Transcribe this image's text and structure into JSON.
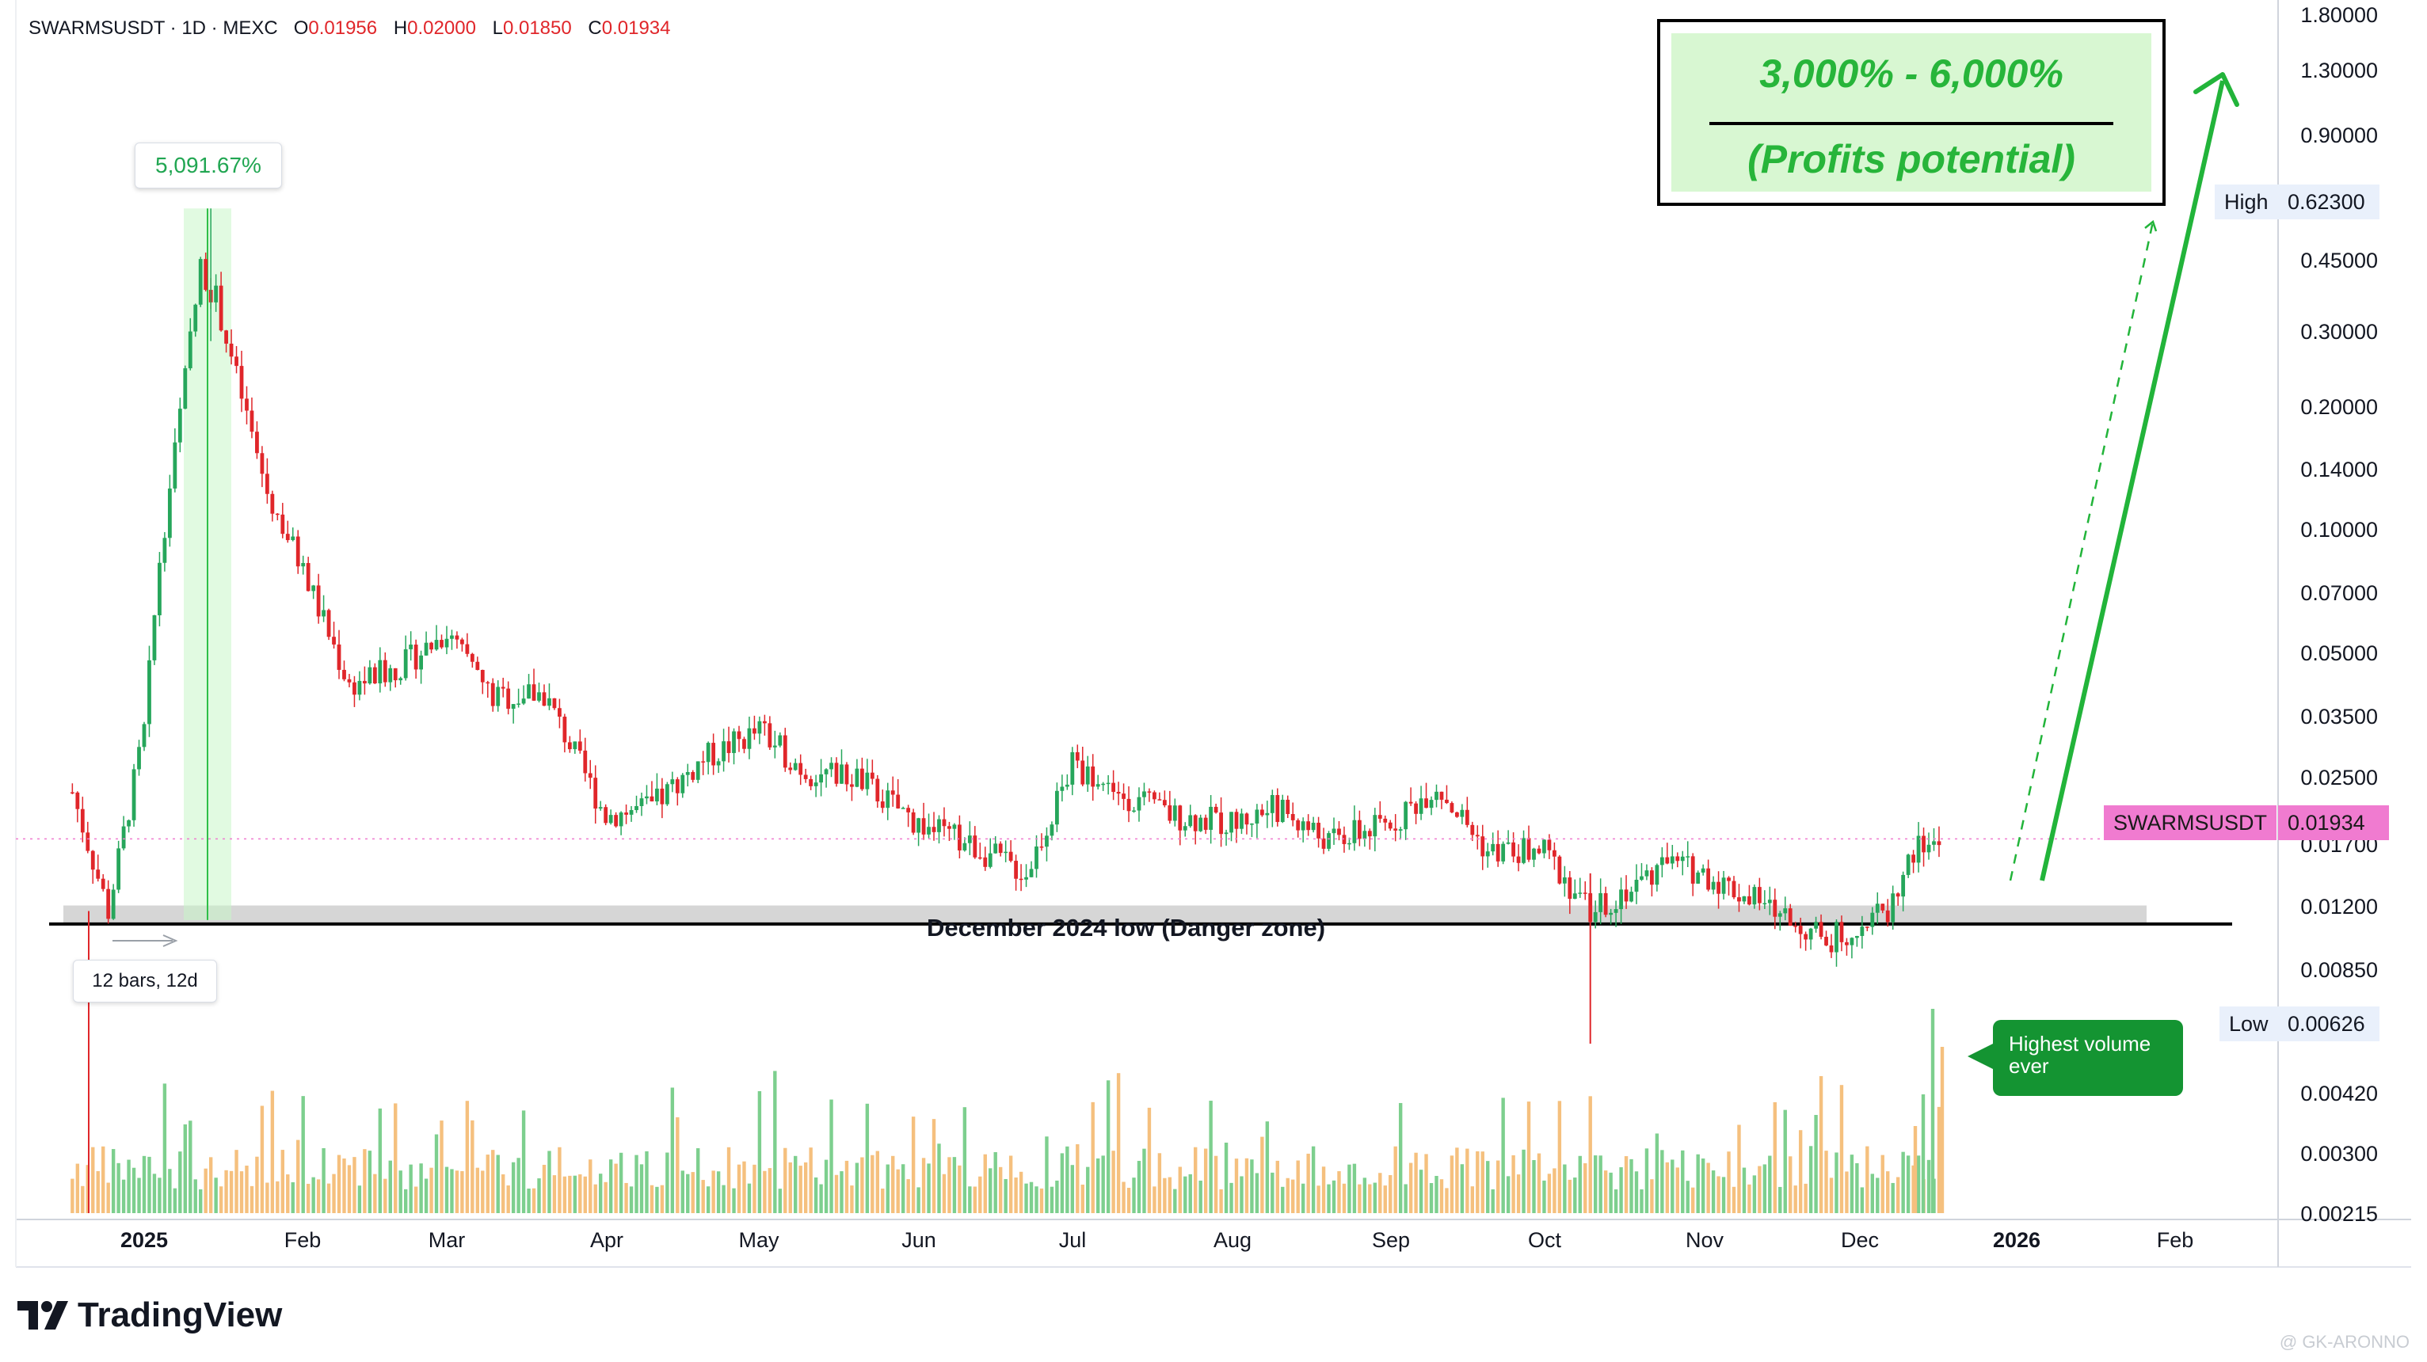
{
  "legend": {
    "symbol": "SWARMSUSDT · 1D · MEXC",
    "open_label": "O",
    "open": "0.01956",
    "high_label": "H",
    "high": "0.02000",
    "low_label": "L",
    "low": "0.01850",
    "close_label": "C",
    "close": "0.01934"
  },
  "annotations": {
    "gain_pct": "5,091.67%",
    "bars_range": "12 bars, 12d",
    "profit_range": "3,000% - 6,000%",
    "profit_caption": "(Profits potential)",
    "danger_zone": "December 2024 low (Danger zone)",
    "volume_note": "Highest volume ever"
  },
  "price_tags": {
    "high_label": "High",
    "high_value": "0.62300",
    "low_label": "Low",
    "low_value": "0.00626",
    "symbol_label": "SWARMSUSDT",
    "last_value": "0.01934"
  },
  "y_axis_labels": [
    "1.80000",
    "1.30000",
    "0.90000",
    "0.45000",
    "0.30000",
    "0.20000",
    "0.14000",
    "0.10000",
    "0.07000",
    "0.05000",
    "0.03500",
    "0.02500",
    "0.01700",
    "0.01200",
    "0.00850",
    "0.00420",
    "0.00300",
    "0.00215"
  ],
  "x_axis_labels": [
    "2025",
    "Feb",
    "Mar",
    "Apr",
    "May",
    "Jun",
    "Jul",
    "Aug",
    "Sep",
    "Oct",
    "Nov",
    "Dec",
    "2026",
    "Feb"
  ],
  "brand": "TradingView",
  "watermark": "@ GK-ARONNO",
  "colors": {
    "up": "#26a65b",
    "down": "#e0262a",
    "vol_up": "#7dcf8e",
    "vol_down": "#f5c07e",
    "accent": "#22b43a",
    "last_tag": "#f07bd0"
  },
  "chart_data": {
    "type": "candlestick",
    "title": "SWARMSUSDT · 1D · MEXC",
    "y_scale": "log",
    "ylim": [
      0.0021,
      1.9
    ],
    "x_ticks": [
      "2025",
      "Feb",
      "Mar",
      "Apr",
      "May",
      "Jun",
      "Jul",
      "Aug",
      "Sep",
      "Oct",
      "Nov",
      "Dec",
      "2026",
      "Feb"
    ],
    "series": [
      {
        "kind": "daily close (approx.)",
        "x": [
          "2024-12-18",
          "2024-12-25",
          "2025-01-01",
          "2025-01-04",
          "2025-01-08",
          "2025-01-12",
          "2025-01-15",
          "2025-01-20",
          "2025-01-25",
          "2025-02-01",
          "2025-02-10",
          "2025-02-20",
          "2025-03-01",
          "2025-03-10",
          "2025-03-20",
          "2025-04-01",
          "2025-04-10",
          "2025-04-20",
          "2025-05-01",
          "2025-05-10",
          "2025-05-20",
          "2025-06-01",
          "2025-06-10",
          "2025-06-22",
          "2025-07-01",
          "2025-07-10",
          "2025-07-20",
          "2025-08-01",
          "2025-08-10",
          "2025-08-20",
          "2025-09-01",
          "2025-09-10",
          "2025-09-20",
          "2025-10-01",
          "2025-10-10",
          "2025-10-15",
          "2025-10-25",
          "2025-11-01",
          "2025-11-10",
          "2025-11-20",
          "2025-11-25",
          "2025-12-01",
          "2025-12-07",
          "2025-12-12",
          "2025-12-18"
        ],
        "y": [
          0.025,
          0.013,
          0.035,
          0.09,
          0.2,
          0.45,
          0.38,
          0.22,
          0.13,
          0.085,
          0.045,
          0.05,
          0.06,
          0.042,
          0.043,
          0.022,
          0.023,
          0.03,
          0.035,
          0.028,
          0.027,
          0.021,
          0.019,
          0.016,
          0.029,
          0.025,
          0.022,
          0.021,
          0.023,
          0.019,
          0.021,
          0.026,
          0.018,
          0.018,
          0.013,
          0.014,
          0.017,
          0.016,
          0.014,
          0.012,
          0.011,
          0.012,
          0.013,
          0.018,
          0.01934
        ]
      }
    ],
    "high_mark": {
      "x": "2025-01-14",
      "y": 0.623
    },
    "low_mark": {
      "x": "2025-10-10",
      "y": 0.00626
    },
    "danger_line": 0.0121,
    "danger_band": [
      0.0121,
      0.0134
    ],
    "last_price": 0.01934,
    "projection": {
      "from_y": 0.0134,
      "to_y": 1.3,
      "gain_range": "3,000% - 6,000%"
    }
  }
}
